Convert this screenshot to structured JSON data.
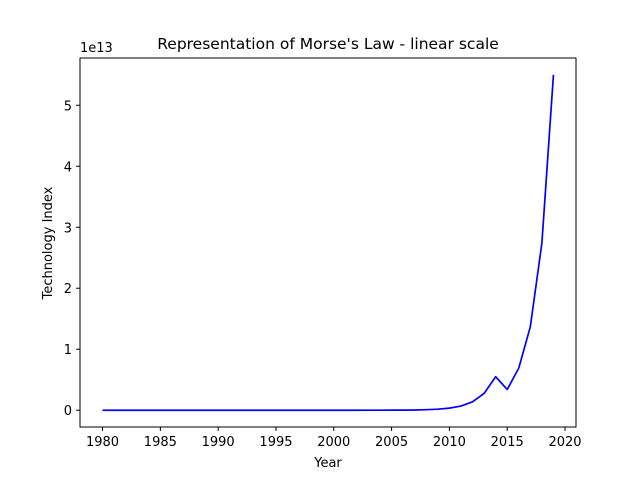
{
  "chart_data": {
    "type": "line",
    "title": "Representation of Morse's Law - linear scale",
    "xlabel": "Year",
    "ylabel": "Technology Index",
    "y_offset_label": "1e13",
    "xlim": [
      1978.05,
      2020.95
    ],
    "ylim": [
      -0.275,
      5.775
    ],
    "y_units_multiplier": 10000000000000.0,
    "grid": false,
    "x_ticks": [
      1980,
      1985,
      1990,
      1995,
      2000,
      2005,
      2010,
      2015,
      2020
    ],
    "x_tick_labels": [
      "1980",
      "1985",
      "1990",
      "1995",
      "2000",
      "2005",
      "2010",
      "2015",
      "2020"
    ],
    "y_ticks": [
      0,
      1,
      2,
      3,
      4,
      5
    ],
    "y_tick_labels": [
      "0",
      "1",
      "2",
      "3",
      "4",
      "5"
    ],
    "series": [
      {
        "color": "#0000ff",
        "x": [
          1980,
          1981,
          1982,
          1983,
          1984,
          1985,
          1986,
          1987,
          1988,
          1989,
          1990,
          1991,
          1992,
          1993,
          1994,
          1995,
          1996,
          1997,
          1998,
          1999,
          2000,
          2001,
          2002,
          2003,
          2004,
          2005,
          2006,
          2007,
          2008,
          2009,
          2010,
          2011,
          2012,
          2013,
          2014,
          2015,
          2016,
          2017,
          2018,
          2019
        ],
        "y": [
          0,
          0,
          0,
          0,
          0,
          0,
          0,
          0,
          0,
          0,
          0,
          0,
          0,
          0,
          0,
          0,
          0,
          0,
          0,
          0,
          0,
          0,
          0,
          0.0003,
          0.0005,
          0.0011,
          0.0021,
          0.0043,
          0.0086,
          0.0172,
          0.0343,
          0.0687,
          0.1374,
          0.2748,
          0.5496,
          0.34,
          0.69,
          1.37,
          2.74,
          5.5
        ]
      }
    ]
  }
}
